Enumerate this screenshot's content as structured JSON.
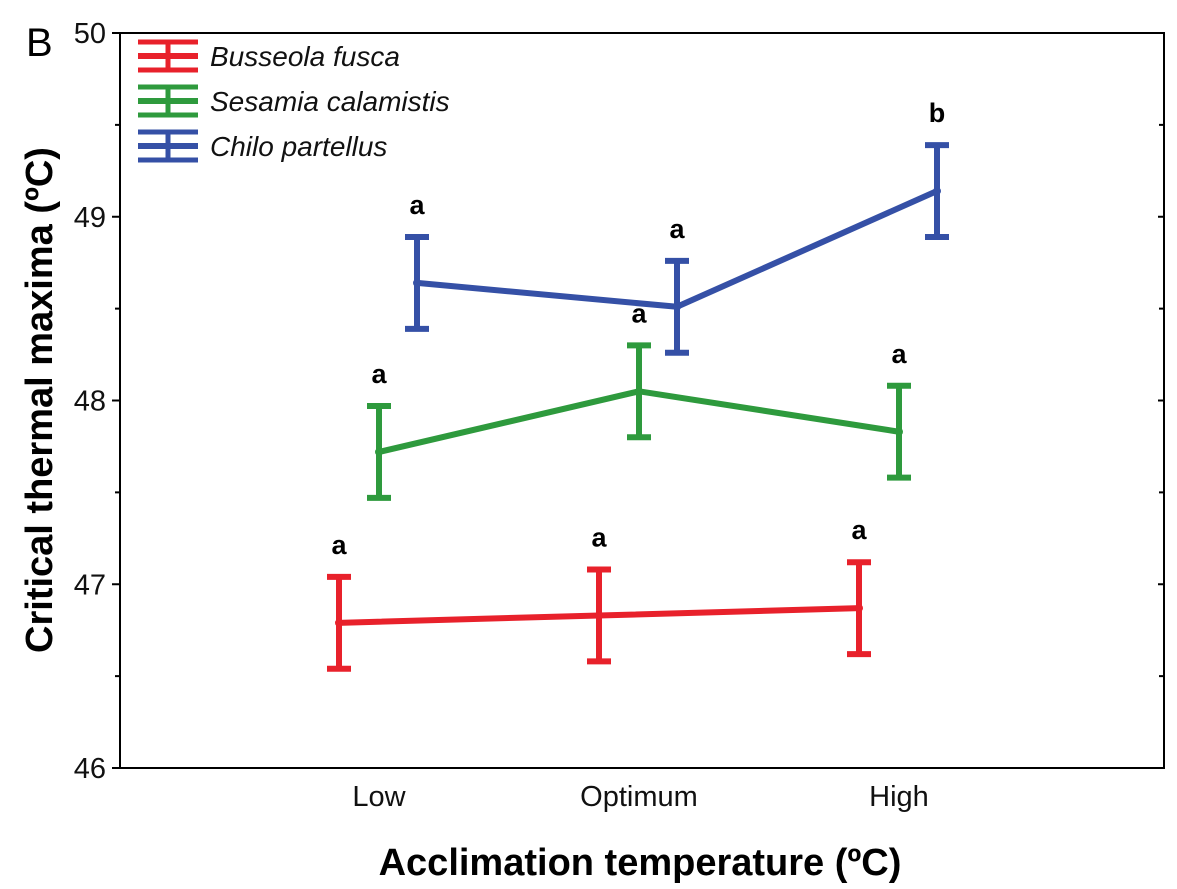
{
  "panel_label": "B",
  "chart_data": {
    "type": "line",
    "title": "",
    "xlabel": "Acclimation temperature (ºC)",
    "ylabel": "Critical thermal maxima (ºC)",
    "categories": [
      "Low",
      "Optimum",
      "High"
    ],
    "ylim": [
      46,
      50
    ],
    "yticks": [
      "46",
      "47",
      "48",
      "49",
      "50"
    ],
    "legend_position": "top-left",
    "series": [
      {
        "name": "Busseola fusca",
        "color": "#e8212b",
        "values": [
          46.79,
          46.83,
          46.87
        ],
        "err_low": [
          46.54,
          46.58,
          46.62
        ],
        "err_high": [
          47.04,
          47.08,
          47.12
        ],
        "labels": [
          "a",
          "a",
          "a"
        ]
      },
      {
        "name": "Sesamia calamistis",
        "color": "#2e9a3d",
        "values": [
          47.72,
          48.05,
          47.83
        ],
        "err_low": [
          47.47,
          47.8,
          47.58
        ],
        "err_high": [
          47.97,
          48.3,
          48.08
        ],
        "labels": [
          "a",
          "a",
          "a"
        ]
      },
      {
        "name": "Chilo partellus",
        "color": "#3550a6",
        "values": [
          48.64,
          48.51,
          49.14
        ],
        "err_low": [
          48.39,
          48.26,
          48.89
        ],
        "err_high": [
          48.89,
          48.76,
          49.39
        ],
        "labels": [
          "a",
          "a",
          "b"
        ]
      }
    ]
  }
}
